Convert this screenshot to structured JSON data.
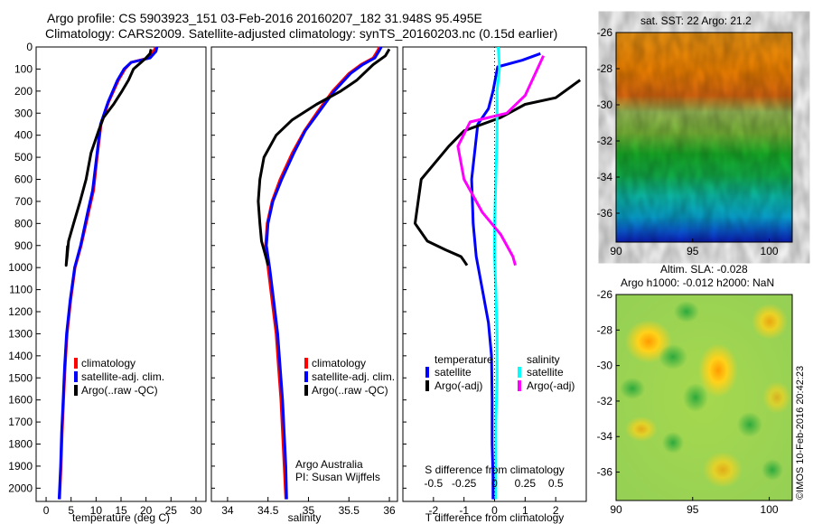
{
  "header": {
    "line1": "Argo profile: CS 5903923_151 03-Feb-2016 20160207_182 31.948S 95.495E",
    "line2": "Climatology: CARS2009. Satellite-adjusted climatology: synTS_20160203.nc (0.15d earlier)"
  },
  "right_panels": {
    "sst_title": "sat. SST: 22 Argo: 21.2",
    "sla_title_1": "Altim. SLA: -0.028",
    "sla_title_2": "Argo h1000: -0.012 h2000: NaN",
    "watermark": "©IMOS 10-Feb-2016 20:42:23"
  },
  "annotations": {
    "argo_org": "Argo Australia",
    "pi_name": "PI: Susan Wijffels"
  },
  "colors": {
    "climatology": "#ff0000",
    "satellite": "#0000ff",
    "argo": "#000000",
    "sal_sat": "#00ffff",
    "sal_argo": "#ff00ff"
  },
  "chart_data": [
    {
      "type": "line",
      "xlabel": "temperature (deg C)",
      "xlim": [
        -2,
        32
      ],
      "ylim": [
        0,
        2060
      ],
      "y_inverted": true,
      "xticks": [
        "0",
        "5",
        "10",
        "15",
        "20",
        "25",
        "30"
      ],
      "yticks": [
        "0",
        "100",
        "200",
        "300",
        "400",
        "500",
        "600",
        "700",
        "800",
        "900",
        "1000",
        "1100",
        "1200",
        "1300",
        "1400",
        "1500",
        "1600",
        "1700",
        "1800",
        "1900",
        "2000"
      ],
      "legend": [
        "climatology",
        "satellite-adj. clim.",
        "Argo(..raw -QC)"
      ],
      "series": [
        {
          "name": "climatology",
          "color": "#ff0000",
          "x": [
            22.0,
            21.5,
            20.5,
            17.0,
            15.8,
            14.5,
            12.5,
            11.0,
            10.2,
            9.5,
            8.5,
            7.0,
            5.8,
            4.9,
            4.2,
            3.8,
            3.5,
            3.2,
            3.0,
            2.8,
            2.7
          ],
          "y": [
            0,
            20,
            50,
            70,
            100,
            150,
            250,
            350,
            500,
            650,
            750,
            900,
            1000,
            1150,
            1300,
            1450,
            1600,
            1750,
            1900,
            2000,
            2050
          ]
        },
        {
          "name": "satellite-adj. clim.",
          "color": "#0000ff",
          "x": [
            22.2,
            22.0,
            20.8,
            17.0,
            15.6,
            14.3,
            12.4,
            10.9,
            10.1,
            9.3,
            8.3,
            6.9,
            5.7,
            4.8,
            4.1,
            3.7,
            3.4,
            3.1,
            2.9,
            2.7,
            2.6
          ],
          "y": [
            0,
            20,
            50,
            70,
            100,
            150,
            250,
            350,
            500,
            650,
            750,
            900,
            1000,
            1150,
            1300,
            1450,
            1600,
            1750,
            1900,
            2000,
            2050
          ]
        },
        {
          "name": "Argo(..raw -QC)",
          "color": "#000000",
          "x": [
            21.0,
            20.8,
            20.0,
            18.5,
            17.5,
            16.5,
            15.2,
            13.5,
            11.5,
            10.5,
            9.0,
            8.0,
            6.8,
            5.5,
            4.5,
            4.2,
            4.0,
            4.3
          ],
          "y": [
            10,
            30,
            50,
            80,
            100,
            150,
            200,
            260,
            320,
            380,
            480,
            600,
            700,
            800,
            880,
            950,
            990,
            900
          ]
        }
      ]
    },
    {
      "type": "line",
      "xlabel": "salinity",
      "xlim": [
        33.8,
        36.1
      ],
      "ylim": [
        0,
        2060
      ],
      "y_inverted": true,
      "xticks": [
        "34",
        "34.5",
        "35",
        "35.5",
        "36"
      ],
      "legend": [
        "climatology",
        "satellite-adj. clim.",
        "Argo(..raw -QC)"
      ],
      "series": [
        {
          "name": "climatology",
          "color": "#ff0000",
          "x": [
            35.88,
            35.85,
            35.8,
            35.65,
            35.5,
            35.3,
            35.1,
            34.95,
            34.8,
            34.65,
            34.55,
            34.49,
            34.47,
            34.5,
            34.55,
            34.6,
            34.63,
            34.66,
            34.68,
            34.7,
            34.72
          ],
          "y": [
            0,
            20,
            50,
            80,
            120,
            200,
            300,
            380,
            480,
            600,
            700,
            800,
            900,
            1000,
            1150,
            1300,
            1450,
            1600,
            1750,
            1900,
            2050
          ]
        },
        {
          "name": "satellite-adj. clim.",
          "color": "#0000ff",
          "x": [
            35.9,
            35.87,
            35.82,
            35.67,
            35.52,
            35.32,
            35.12,
            34.96,
            34.82,
            34.67,
            34.56,
            34.5,
            34.48,
            34.52,
            34.57,
            34.62,
            34.65,
            34.68,
            34.7,
            34.72,
            34.73
          ],
          "y": [
            0,
            20,
            50,
            80,
            120,
            200,
            300,
            380,
            480,
            600,
            700,
            800,
            900,
            1000,
            1150,
            1300,
            1450,
            1600,
            1750,
            1900,
            2050
          ]
        },
        {
          "name": "Argo(..raw -QC)",
          "color": "#000000",
          "x": [
            36.0,
            35.95,
            35.8,
            35.6,
            35.4,
            35.1,
            34.8,
            34.6,
            34.45,
            34.4,
            34.38,
            34.4,
            34.42,
            34.45,
            34.48,
            34.5
          ],
          "y": [
            10,
            40,
            80,
            150,
            200,
            260,
            330,
            400,
            500,
            600,
            700,
            800,
            880,
            920,
            960,
            990
          ]
        }
      ]
    },
    {
      "type": "line",
      "xlabel": "T difference from climatology",
      "x2label": "S difference from climatology",
      "xlim": [
        -3,
        3
      ],
      "x2lim": [
        -0.75,
        0.75
      ],
      "ylim": [
        0,
        2060
      ],
      "y_inverted": true,
      "xticks": [
        "-2",
        "-1",
        "0",
        "1",
        "2"
      ],
      "x2ticks": [
        "-0.5",
        "-0.25",
        "0",
        "0.25",
        "0.5"
      ],
      "legend_left_title": "temperature",
      "legend_right_title": "salinity",
      "legend_left": [
        "satellite",
        "Argo(-adj)"
      ],
      "legend_right": [
        "satellite",
        "Argo(-adj)"
      ],
      "series": [
        {
          "name": "temperature satellite",
          "color": "#0000ff",
          "x": [
            1.5,
            0.9,
            0.1,
            -0.05,
            -0.2,
            -0.55,
            -0.75,
            -0.7,
            -0.6,
            -0.4,
            -0.2,
            -0.1,
            -0.08,
            -0.08,
            -0.05,
            -0.05
          ],
          "y": [
            30,
            60,
            90,
            200,
            280,
            350,
            600,
            800,
            950,
            1100,
            1250,
            1400,
            1600,
            1800,
            1950,
            2050
          ]
        },
        {
          "name": "temperature Argo(-adj)",
          "color": "#000000",
          "x": [
            2.8,
            2.0,
            1.0,
            0.2,
            -1.0,
            -1.5,
            -2.4,
            -2.6,
            -2.2,
            -1.6,
            -1.1,
            -1.0,
            -0.9
          ],
          "y": [
            150,
            230,
            260,
            320,
            380,
            450,
            600,
            800,
            880,
            920,
            950,
            970,
            990
          ]
        },
        {
          "name": "salinity satellite",
          "color": "#00ffff",
          "x": [
            0.03,
            0.04,
            0.02,
            0.02,
            0.01,
            0.0,
            0.0,
            0.01,
            0.02,
            0.02,
            0.01,
            0.01
          ],
          "y": [
            0,
            100,
            200,
            400,
            600,
            800,
            950,
            1100,
            1300,
            1500,
            1700,
            2050
          ]
        },
        {
          "name": "salinity Argo(-adj)",
          "color": "#ff00ff",
          "x": [
            0.4,
            0.35,
            0.25,
            0.1,
            -0.2,
            -0.3,
            -0.25,
            -0.1,
            0.05,
            0.15,
            0.17
          ],
          "y": [
            40,
            100,
            220,
            300,
            340,
            450,
            600,
            750,
            850,
            950,
            990
          ]
        }
      ]
    },
    {
      "type": "heatmap",
      "title": "sat. SST: 22 Argo: 21.2",
      "xlim": [
        90,
        101.5
      ],
      "ylim": [
        -37.6,
        -26
      ],
      "xticks": [
        "90",
        "95",
        "100"
      ],
      "yticks": [
        "-26",
        "-28",
        "-30",
        "-32",
        "-34",
        "-36"
      ],
      "description_colors": [
        "#ff9900",
        "#ffcc00",
        "#99cc33",
        "#33bb33",
        "#00cccc",
        "#0066ff",
        "#0000cc"
      ]
    },
    {
      "type": "heatmap",
      "title": "Altim. SLA: -0.028",
      "xlim": [
        90,
        101.5
      ],
      "ylim": [
        -37.6,
        -26
      ],
      "xticks": [
        "90",
        "95",
        "100"
      ],
      "yticks": [
        "-26",
        "-28",
        "-30",
        "-32",
        "-34",
        "-36"
      ]
    }
  ]
}
